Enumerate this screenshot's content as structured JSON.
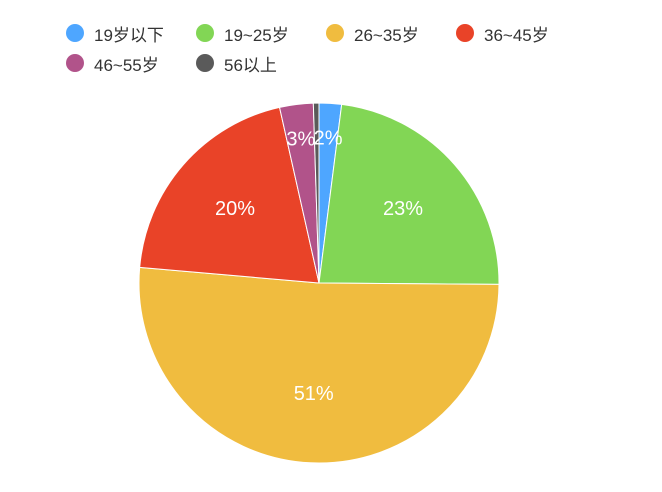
{
  "chart_data": {
    "type": "pie",
    "legend_position": "top",
    "slices": [
      {
        "name": "19岁以下",
        "value": 2,
        "label": "2%",
        "color": "#4ea6ff"
      },
      {
        "name": "19~25岁",
        "value": 23,
        "label": "23%",
        "color": "#82d655"
      },
      {
        "name": "26~35岁",
        "value": 51,
        "label": "51%",
        "color": "#f0bc3f"
      },
      {
        "name": "36~45岁",
        "value": 20,
        "label": "20%",
        "color": "#e94328"
      },
      {
        "name": "46~55岁",
        "value": 3,
        "label": "3%",
        "color": "#b1538a"
      },
      {
        "name": "56以上",
        "value": 0.5,
        "label": "",
        "color": "#5a5a5a"
      }
    ]
  }
}
